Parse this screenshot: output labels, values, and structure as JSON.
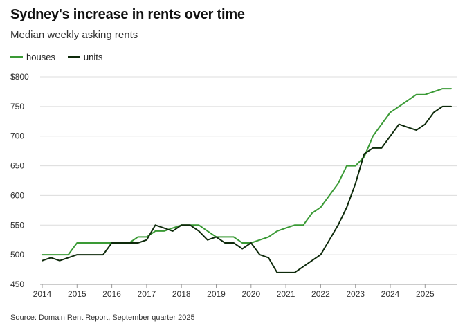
{
  "header": {
    "title": "Sydney's increase in rents over time",
    "subtitle": "Median weekly asking rents"
  },
  "footer": {
    "source": "Source: Domain Rent Report, September quarter 2025"
  },
  "chart_data": {
    "type": "line",
    "title": "Sydney's increase in rents over time",
    "subtitle": "Median weekly asking rents",
    "xlabel": "",
    "ylabel": "",
    "xlim": [
      2014,
      2025.75
    ],
    "ylim": [
      450,
      800
    ],
    "x_ticks": [
      "2014",
      "2015",
      "2016",
      "2017",
      "2018",
      "2019",
      "2020",
      "2021",
      "2022",
      "2023",
      "2024",
      "2025"
    ],
    "y_ticks": [
      {
        "value": 450,
        "label": "450"
      },
      {
        "value": 500,
        "label": "500"
      },
      {
        "value": 550,
        "label": "550"
      },
      {
        "value": 600,
        "label": "600"
      },
      {
        "value": 650,
        "label": "650"
      },
      {
        "value": 700,
        "label": "700"
      },
      {
        "value": 750,
        "label": "750"
      },
      {
        "value": 800,
        "label": "$800"
      }
    ],
    "grid": true,
    "legend_position": "top-left",
    "series": [
      {
        "name": "houses",
        "color": "#3a9a35",
        "x": [
          2014.0,
          2014.25,
          2014.5,
          2014.75,
          2015.0,
          2015.25,
          2015.5,
          2015.75,
          2016.0,
          2016.25,
          2016.5,
          2016.75,
          2017.0,
          2017.25,
          2017.5,
          2017.75,
          2018.0,
          2018.25,
          2018.5,
          2018.75,
          2019.0,
          2019.25,
          2019.5,
          2019.75,
          2020.0,
          2020.25,
          2020.5,
          2020.75,
          2021.0,
          2021.25,
          2021.5,
          2021.75,
          2022.0,
          2022.25,
          2022.5,
          2022.75,
          2023.0,
          2023.25,
          2023.5,
          2023.75,
          2024.0,
          2024.25,
          2024.5,
          2024.75,
          2025.0,
          2025.25,
          2025.5,
          2025.75
        ],
        "values": [
          500,
          500,
          500,
          500,
          520,
          520,
          520,
          520,
          520,
          520,
          520,
          530,
          530,
          540,
          540,
          545,
          550,
          550,
          550,
          540,
          530,
          530,
          530,
          520,
          520,
          525,
          530,
          540,
          545,
          550,
          550,
          570,
          580,
          600,
          620,
          650,
          650,
          665,
          700,
          720,
          740,
          750,
          760,
          770,
          770,
          775,
          780,
          780
        ]
      },
      {
        "name": "units",
        "color": "#0e2a0b",
        "x": [
          2014.0,
          2014.25,
          2014.5,
          2014.75,
          2015.0,
          2015.25,
          2015.5,
          2015.75,
          2016.0,
          2016.25,
          2016.5,
          2016.75,
          2017.0,
          2017.25,
          2017.5,
          2017.75,
          2018.0,
          2018.25,
          2018.5,
          2018.75,
          2019.0,
          2019.25,
          2019.5,
          2019.75,
          2020.0,
          2020.25,
          2020.5,
          2020.75,
          2021.0,
          2021.25,
          2021.5,
          2021.75,
          2022.0,
          2022.25,
          2022.5,
          2022.75,
          2023.0,
          2023.25,
          2023.5,
          2023.75,
          2024.0,
          2024.25,
          2024.5,
          2024.75,
          2025.0,
          2025.25,
          2025.5,
          2025.75
        ],
        "values": [
          490,
          495,
          490,
          495,
          500,
          500,
          500,
          500,
          520,
          520,
          520,
          520,
          525,
          550,
          545,
          540,
          550,
          550,
          540,
          525,
          530,
          520,
          520,
          510,
          520,
          500,
          495,
          470,
          470,
          470,
          480,
          490,
          500,
          525,
          550,
          580,
          620,
          670,
          680,
          680,
          700,
          720,
          715,
          710,
          720,
          740,
          750,
          750
        ]
      }
    ]
  }
}
